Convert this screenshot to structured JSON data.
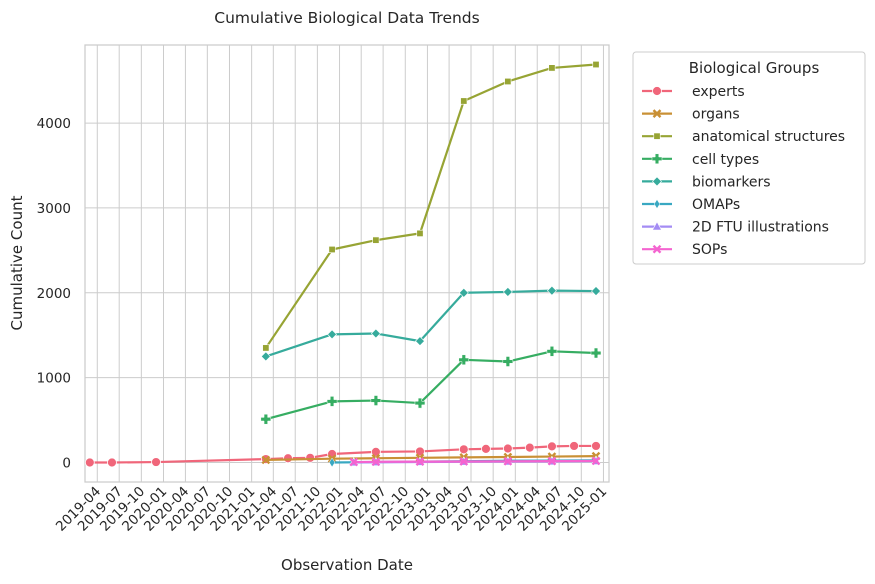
{
  "chart_data": {
    "type": "line",
    "title": "Cumulative Biological Data Trends",
    "xlabel": "Observation Date",
    "ylabel": "Cumulative Count",
    "x_tick_labels": [
      "2019-04",
      "2019-07",
      "2019-10",
      "2020-01",
      "2020-04",
      "2020-07",
      "2020-10",
      "2021-01",
      "2021-04",
      "2021-07",
      "2021-10",
      "2022-01",
      "2022-04",
      "2022-07",
      "2022-10",
      "2023-01",
      "2023-04",
      "2023-07",
      "2023-10",
      "2024-01",
      "2024-04",
      "2024-07",
      "2024-10",
      "2025-01"
    ],
    "y_ticks": [
      0,
      1000,
      2000,
      3000,
      4000
    ],
    "ylim": [
      -230,
      4920
    ],
    "xlim": [
      "2019-02-09",
      "2025-01-24"
    ],
    "grid": true,
    "legend": {
      "title": "Biological Groups",
      "position": "outside-top-right"
    },
    "series": [
      {
        "name": "experts",
        "color": "#f0667a",
        "marker": "circle",
        "x": [
          "2019-03-01",
          "2019-06-01",
          "2019-12-01",
          "2021-03-01",
          "2021-06-01",
          "2021-09-01",
          "2021-12-01",
          "2022-06-01",
          "2022-12-01",
          "2023-06-01",
          "2023-09-01",
          "2023-12-01",
          "2024-03-01",
          "2024-06-01",
          "2024-09-01",
          "2024-12-01"
        ],
        "y": [
          0,
          0,
          5,
          40,
          50,
          55,
          100,
          125,
          130,
          155,
          160,
          165,
          175,
          190,
          195,
          195
        ]
      },
      {
        "name": "organs",
        "color": "#c99035",
        "marker": "x",
        "x": [
          "2021-03-01",
          "2021-12-01",
          "2022-06-01",
          "2022-12-01",
          "2023-06-01",
          "2023-12-01",
          "2024-06-01",
          "2024-12-01"
        ],
        "y": [
          30,
          45,
          50,
          55,
          60,
          65,
          70,
          75
        ]
      },
      {
        "name": "anatomical structures",
        "color": "#97a434",
        "marker": "square",
        "x": [
          "2021-03-01",
          "2021-12-01",
          "2022-06-01",
          "2022-12-01",
          "2023-06-01",
          "2023-12-01",
          "2024-06-01",
          "2024-12-01"
        ],
        "y": [
          1350,
          2510,
          2620,
          2700,
          4260,
          4490,
          4650,
          4690
        ]
      },
      {
        "name": "cell types",
        "color": "#36ad62",
        "marker": "plus",
        "x": [
          "2021-03-01",
          "2021-12-01",
          "2022-06-01",
          "2022-12-01",
          "2023-06-01",
          "2023-12-01",
          "2024-06-01",
          "2024-12-01"
        ],
        "y": [
          510,
          720,
          730,
          700,
          1210,
          1190,
          1310,
          1290
        ]
      },
      {
        "name": "biomarkers",
        "color": "#36ab9c",
        "marker": "diamond",
        "x": [
          "2021-03-01",
          "2021-12-01",
          "2022-06-01",
          "2022-12-01",
          "2023-06-01",
          "2023-12-01",
          "2024-06-01",
          "2024-12-01"
        ],
        "y": [
          1250,
          1510,
          1520,
          1430,
          2000,
          2010,
          2025,
          2020
        ]
      },
      {
        "name": "OMAPs",
        "color": "#39a8c2",
        "marker": "thin-diamond",
        "x": [
          "2021-12-01",
          "2022-06-01",
          "2022-12-01",
          "2023-06-01",
          "2023-12-01",
          "2024-06-01",
          "2024-12-01"
        ],
        "y": [
          0,
          5,
          10,
          15,
          20,
          22,
          25
        ]
      },
      {
        "name": "2D FTU illustrations",
        "color": "#a48cf4",
        "marker": "triangle",
        "x": [
          "2022-03-01",
          "2022-06-01",
          "2022-12-01",
          "2023-06-01",
          "2023-12-01",
          "2024-06-01",
          "2024-12-01"
        ],
        "y": [
          0,
          2,
          5,
          8,
          10,
          12,
          15
        ]
      },
      {
        "name": "SOPs",
        "color": "#f464d0",
        "marker": "x",
        "x": [
          "2022-03-01",
          "2022-06-01",
          "2022-12-01",
          "2023-06-01",
          "2023-12-01",
          "2024-06-01",
          "2024-12-01"
        ],
        "y": [
          5,
          8,
          10,
          12,
          14,
          16,
          18
        ]
      }
    ]
  }
}
